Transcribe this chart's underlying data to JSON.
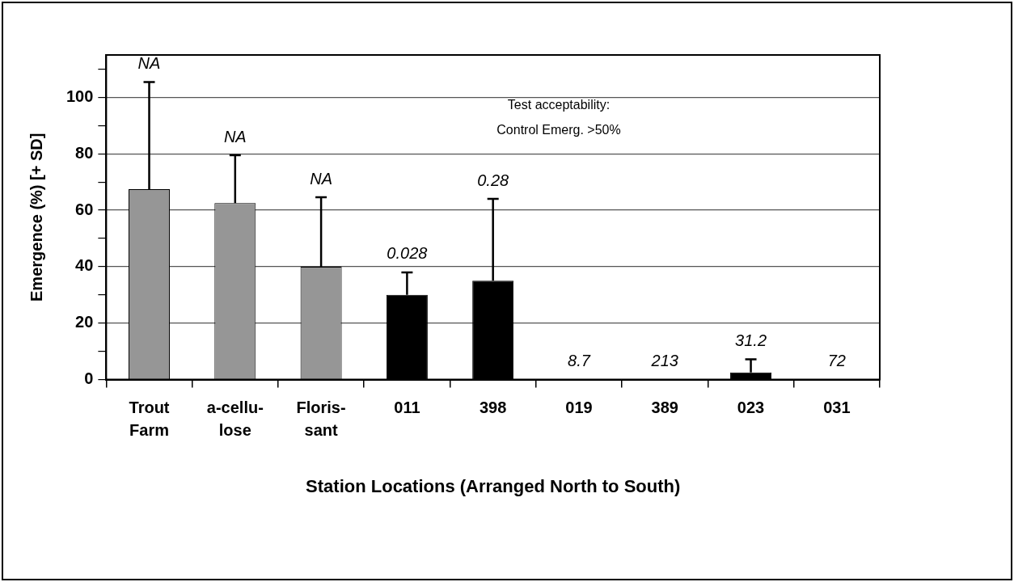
{
  "chart_data": {
    "type": "bar",
    "ylabel": "Emergence (%) [+ SD]",
    "xlabel": "Station Locations (Arranged North to South)",
    "categories": [
      "Trout\nFarm",
      "a-cellu-\nlose",
      "Floris-\nsant",
      "011",
      "398",
      "019",
      "389",
      "023",
      "031"
    ],
    "values": [
      67.5,
      62.5,
      40,
      30,
      35,
      0,
      0,
      2.5,
      0
    ],
    "colors": [
      "#969696",
      "#969696",
      "#969696",
      "#000000",
      "#000000",
      "#000000",
      "#000000",
      "#000000",
      "#000000"
    ],
    "errors": [
      [
        67.5,
        105.4
      ],
      [
        62.5,
        79.5
      ],
      [
        40,
        64.6
      ],
      [
        30,
        38
      ],
      [
        35,
        64
      ],
      null,
      null,
      [
        2.5,
        7.2
      ],
      null
    ],
    "ylim": [
      0,
      115
    ],
    "yticks": [
      0,
      {
        "value": 10,
        "label": null
      },
      20,
      {
        "value": 30,
        "label": null
      },
      40,
      {
        "value": 50,
        "label": null
      },
      60,
      {
        "value": 70,
        "label": null
      },
      80,
      {
        "value": 90,
        "label": null
      },
      100,
      {
        "value": 110,
        "label": null
      }
    ],
    "grid": "y",
    "legend": false,
    "annotations": [
      {
        "text": "NA",
        "x": "Trout\nFarm",
        "y": 105.4
      },
      {
        "text": "NA",
        "x": "a-cellu-\nlose",
        "y": 79.5
      },
      {
        "text": "NA",
        "x": "Floris-\nsant",
        "y": 64.6
      },
      {
        "text": "0.028",
        "x": "011",
        "y": 38
      },
      {
        "text": "0.28",
        "x": "398",
        "y": 64
      },
      {
        "text": "8.7",
        "x": "019",
        "y": 0
      },
      {
        "text": "213",
        "x": "389",
        "y": 0
      },
      {
        "text": "31.2",
        "x": "023",
        "y": 7.2
      },
      {
        "text": "72",
        "x": "031",
        "y": 0
      },
      "Test acceptability:\nControl Emerg. >50%"
    ]
  }
}
